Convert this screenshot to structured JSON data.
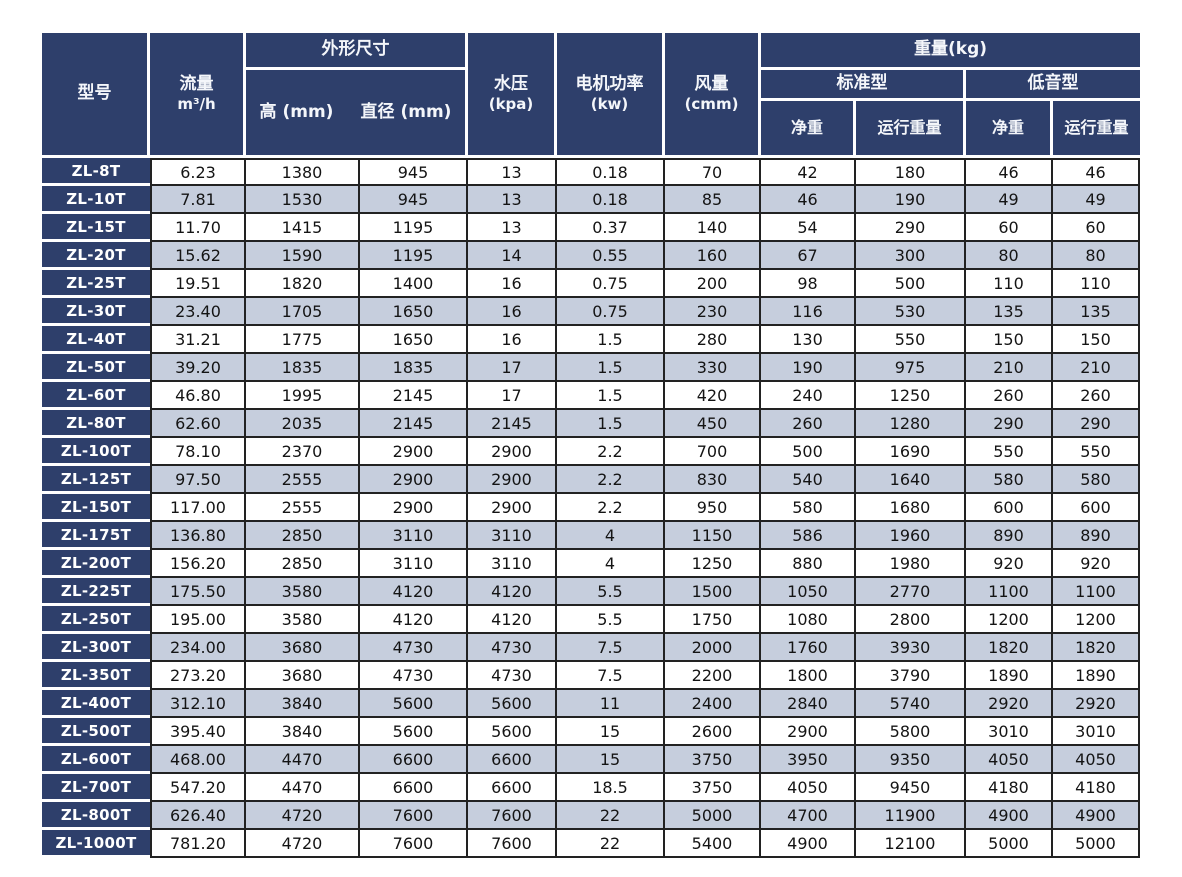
{
  "table": {
    "header": {
      "model": "型号",
      "flow_line1": "流量",
      "flow_line2": "m³/h",
      "dimensions_group": "外形尺寸",
      "height": "高 (mm)",
      "diameter": "直径 (mm)",
      "water_pressure_line1": "水压",
      "water_pressure_line2": "(kpa)",
      "motor_power_line1": "电机功率",
      "motor_power_line2": "(kw)",
      "air_volume_line1": "风量",
      "air_volume_line2": "(cmm)",
      "weight_group": "重量(kg)",
      "standard_type": "标准型",
      "low_noise_type": "低音型",
      "net_weight_std": "净重",
      "operating_weight_std": "运行重量",
      "net_weight_low": "净重",
      "operating_weight_low": "运行重量"
    },
    "rows": [
      [
        "ZL-8T",
        "6.23",
        "1380",
        "945",
        "13",
        "0.18",
        "70",
        "42",
        "180",
        "46",
        "46"
      ],
      [
        "ZL-10T",
        "7.81",
        "1530",
        "945",
        "13",
        "0.18",
        "85",
        "46",
        "190",
        "49",
        "49"
      ],
      [
        "ZL-15T",
        "11.70",
        "1415",
        "1195",
        "13",
        "0.37",
        "140",
        "54",
        "290",
        "60",
        "60"
      ],
      [
        "ZL-20T",
        "15.62",
        "1590",
        "1195",
        "14",
        "0.55",
        "160",
        "67",
        "300",
        "80",
        "80"
      ],
      [
        "ZL-25T",
        "19.51",
        "1820",
        "1400",
        "16",
        "0.75",
        "200",
        "98",
        "500",
        "110",
        "110"
      ],
      [
        "ZL-30T",
        "23.40",
        "1705",
        "1650",
        "16",
        "0.75",
        "230",
        "116",
        "530",
        "135",
        "135"
      ],
      [
        "ZL-40T",
        "31.21",
        "1775",
        "1650",
        "16",
        "1.5",
        "280",
        "130",
        "550",
        "150",
        "150"
      ],
      [
        "ZL-50T",
        "39.20",
        "1835",
        "1835",
        "17",
        "1.5",
        "330",
        "190",
        "975",
        "210",
        "210"
      ],
      [
        "ZL-60T",
        "46.80",
        "1995",
        "2145",
        "17",
        "1.5",
        "420",
        "240",
        "1250",
        "260",
        "260"
      ],
      [
        "ZL-80T",
        "62.60",
        "2035",
        "2145",
        "2145",
        "1.5",
        "450",
        "260",
        "1280",
        "290",
        "290"
      ],
      [
        "ZL-100T",
        "78.10",
        "2370",
        "2900",
        "2900",
        "2.2",
        "700",
        "500",
        "1690",
        "550",
        "550"
      ],
      [
        "ZL-125T",
        "97.50",
        "2555",
        "2900",
        "2900",
        "2.2",
        "830",
        "540",
        "1640",
        "580",
        "580"
      ],
      [
        "ZL-150T",
        "117.00",
        "2555",
        "2900",
        "2900",
        "2.2",
        "950",
        "580",
        "1680",
        "600",
        "600"
      ],
      [
        "ZL-175T",
        "136.80",
        "2850",
        "3110",
        "3110",
        "4",
        "1150",
        "586",
        "1960",
        "890",
        "890"
      ],
      [
        "ZL-200T",
        "156.20",
        "2850",
        "3110",
        "3110",
        "4",
        "1250",
        "880",
        "1980",
        "920",
        "920"
      ],
      [
        "ZL-225T",
        "175.50",
        "3580",
        "4120",
        "4120",
        "5.5",
        "1500",
        "1050",
        "2770",
        "1100",
        "1100"
      ],
      [
        "ZL-250T",
        "195.00",
        "3580",
        "4120",
        "4120",
        "5.5",
        "1750",
        "1080",
        "2800",
        "1200",
        "1200"
      ],
      [
        "ZL-300T",
        "234.00",
        "3680",
        "4730",
        "4730",
        "7.5",
        "2000",
        "1760",
        "3930",
        "1820",
        "1820"
      ],
      [
        "ZL-350T",
        "273.20",
        "3680",
        "4730",
        "4730",
        "7.5",
        "2200",
        "1800",
        "3790",
        "1890",
        "1890"
      ],
      [
        "ZL-400T",
        "312.10",
        "3840",
        "5600",
        "5600",
        "11",
        "2400",
        "2840",
        "5740",
        "2920",
        "2920"
      ],
      [
        "ZL-500T",
        "395.40",
        "3840",
        "5600",
        "5600",
        "15",
        "2600",
        "2900",
        "5800",
        "3010",
        "3010"
      ],
      [
        "ZL-600T",
        "468.00",
        "4470",
        "6600",
        "6600",
        "15",
        "3750",
        "3950",
        "9350",
        "4050",
        "4050"
      ],
      [
        "ZL-700T",
        "547.20",
        "4470",
        "6600",
        "6600",
        "18.5",
        "3750",
        "4050",
        "9450",
        "4180",
        "4180"
      ],
      [
        "ZL-800T",
        "626.40",
        "4720",
        "7600",
        "7600",
        "22",
        "5000",
        "4700",
        "11900",
        "4900",
        "4900"
      ],
      [
        "ZL-1000T",
        "781.20",
        "4720",
        "7600",
        "7600",
        "22",
        "5400",
        "4900",
        "12100",
        "5000",
        "5000"
      ]
    ]
  },
  "colors": {
    "header_bg": "#2e3f6b",
    "stripe_bg": "#c6cedd",
    "row_bg": "#ffffff",
    "grid_line": "#222222",
    "header_text": "#f4f6fa",
    "body_text": "#141414"
  }
}
